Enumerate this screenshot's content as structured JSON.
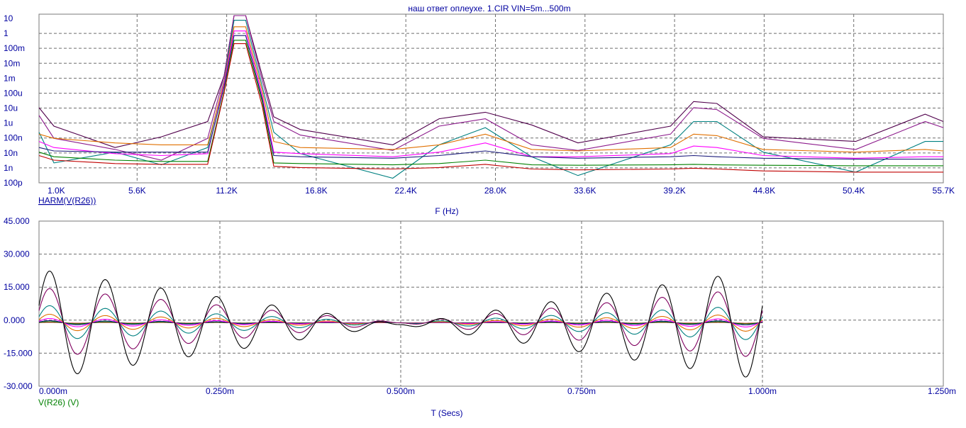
{
  "title": "наш ответ оплеухе. 1.CIR VIN=5m...500m",
  "chart_data": [
    {
      "type": "line",
      "scale": "log-y",
      "xlabel": "F (Hz)",
      "x_ticks": [
        "1.0K",
        "5.6K",
        "11.2K",
        "16.8K",
        "22.4K",
        "28.0K",
        "33.6K",
        "39.2K",
        "44.8K",
        "50.4K",
        "55.7K"
      ],
      "y_ticks": [
        "10",
        "1",
        "100m",
        "10m",
        "1m",
        "100u",
        "10u",
        "1u",
        "100n",
        "10n",
        "1n",
        "100p"
      ],
      "xlim": [
        1000,
        55700
      ],
      "ylim": [
        1e-10,
        10
      ],
      "trace_label": "HARM(V(R26))",
      "trace_label_color": "#0000a0",
      "grid": true,
      "x": [
        1000,
        1900,
        5600,
        8400,
        11200,
        12200,
        12800,
        13500,
        14500,
        15200,
        16800,
        22400,
        25200,
        28000,
        30800,
        33600,
        39200,
        40600,
        42000,
        44800,
        50400,
        54600,
        55700
      ],
      "series": [
        {
          "color": "#50004c",
          "values": [
            8e-06,
            5e-07,
            2e-08,
            1e-07,
            1e-06,
            0.001,
            15,
            15,
            0.001,
            2e-06,
            3e-07,
            3e-08,
            1.5e-06,
            4e-06,
            6e-07,
            4e-08,
            5e-07,
            2e-05,
            1.5e-05,
            1e-07,
            5e-08,
            3e-06,
            1e-06
          ]
        },
        {
          "color": "#8c1a8c",
          "values": [
            2.5e-06,
            8e-08,
            1.5e-08,
            3e-09,
            8e-08,
            0.001,
            12,
            12,
            0.0005,
            1e-06,
            1.3e-07,
            1.3e-08,
            5e-07,
            1.5e-06,
            3e-08,
            1.3e-08,
            1.5e-07,
            8e-06,
            6e-06,
            8e-08,
            1.5e-08,
            1e-06,
            4e-07
          ]
        },
        {
          "color": "#008080",
          "values": [
            2e-07,
            2e-09,
            1e-08,
            1.5e-09,
            2e-08,
            0.0005,
            4,
            4,
            0.0002,
            2e-07,
            8e-09,
            2e-10,
            3e-08,
            4e-07,
            5e-09,
            3e-10,
            3e-08,
            1e-06,
            1e-06,
            1e-08,
            5e-10,
            5e-08,
            5e-08
          ]
        },
        {
          "color": "#e07000",
          "values": [
            1.5e-07,
            8e-08,
            4e-08,
            3e-08,
            3e-08,
            0.0004,
            1.5,
            1.5,
            0.0001,
            5e-08,
            2e-08,
            1.5e-08,
            3e-08,
            1.5e-07,
            1.5e-08,
            1.2e-08,
            2e-08,
            1.5e-07,
            1.2e-07,
            1.5e-08,
            1e-08,
            1.5e-08,
            1.2e-08
          ]
        },
        {
          "color": "#ff00ff",
          "values": [
            5e-08,
            2e-08,
            8e-09,
            6e-09,
            8e-09,
            0.0003,
            0.8,
            0.8,
            5e-05,
            1e-08,
            8e-09,
            5e-09,
            1e-08,
            4e-08,
            5e-09,
            5e-09,
            8e-09,
            2.5e-08,
            2e-08,
            6e-09,
            4e-09,
            5e-09,
            5e-09
          ]
        },
        {
          "color": "#1a1a7a",
          "values": [
            2e-08,
            1.2e-08,
            1e-08,
            1e-08,
            1e-08,
            0.0002,
            0.4,
            0.4,
            3e-05,
            6e-09,
            5e-09,
            4e-09,
            6e-09,
            1.2e-08,
            5e-09,
            4e-09,
            5e-09,
            6e-09,
            5e-09,
            4e-09,
            3.5e-09,
            3.5e-09,
            3.5e-09
          ]
        },
        {
          "color": "#008000",
          "values": [
            1e-08,
            5e-09,
            3e-09,
            2.5e-09,
            2.5e-09,
            0.0001,
            0.2,
            0.2,
            2e-05,
            2e-09,
            1.8e-09,
            1.5e-09,
            1.8e-09,
            3e-09,
            1.5e-09,
            1.4e-09,
            1.5e-09,
            1.6e-09,
            1.5e-09,
            1.4e-09,
            1.3e-09,
            1.3e-09,
            1.3e-09
          ]
        },
        {
          "color": "#c00000",
          "values": [
            6e-09,
            3e-09,
            1.8e-09,
            1.6e-09,
            1.6e-09,
            8e-05,
            0.12,
            0.12,
            1e-05,
            1.2e-09,
            1e-09,
            8e-10,
            1e-09,
            1.6e-09,
            8e-10,
            7e-10,
            8e-10,
            9e-10,
            8e-10,
            6e-10,
            5e-10,
            5e-10,
            5e-10
          ]
        }
      ]
    },
    {
      "type": "line",
      "xlabel": "T (Secs)",
      "x_ticks": [
        "0.000m",
        "0.250m",
        "0.500m",
        "0.750m",
        "1.000m",
        "1.250m"
      ],
      "y_ticks": [
        "45.000",
        "30.000",
        "15.000",
        "0.000",
        "-15.000",
        "-30.000"
      ],
      "xlim": [
        0,
        1.25
      ],
      "ylim": [
        -30,
        45
      ],
      "trace_label": "V(R26) (V)",
      "trace_label_color": "#008000",
      "grid": true,
      "carrier_freq_khz": 13,
      "envelope_peaks_ms": [
        0,
        1.0
      ],
      "envelope_null_ms": 0.5,
      "data_end_ms": 1.0,
      "series": [
        {
          "color": "#000000",
          "offset": -2.0,
          "peak_amplitude": 25
        },
        {
          "color": "#800060",
          "offset": -1.2,
          "peak_amplitude": 16
        },
        {
          "color": "#008080",
          "offset": -1.2,
          "peak_amplitude": 8
        },
        {
          "color": "#e07000",
          "offset": -1.2,
          "peak_amplitude": 4
        },
        {
          "color": "#ff00ff",
          "offset": -1.2,
          "peak_amplitude": 2
        },
        {
          "color": "#1a1a7a",
          "offset": -1.2,
          "peak_amplitude": 1
        },
        {
          "color": "#008000",
          "offset": -1.2,
          "peak_amplitude": 0.5
        },
        {
          "color": "#c00000",
          "offset": -1.2,
          "peak_amplitude": 0.25
        }
      ]
    }
  ]
}
